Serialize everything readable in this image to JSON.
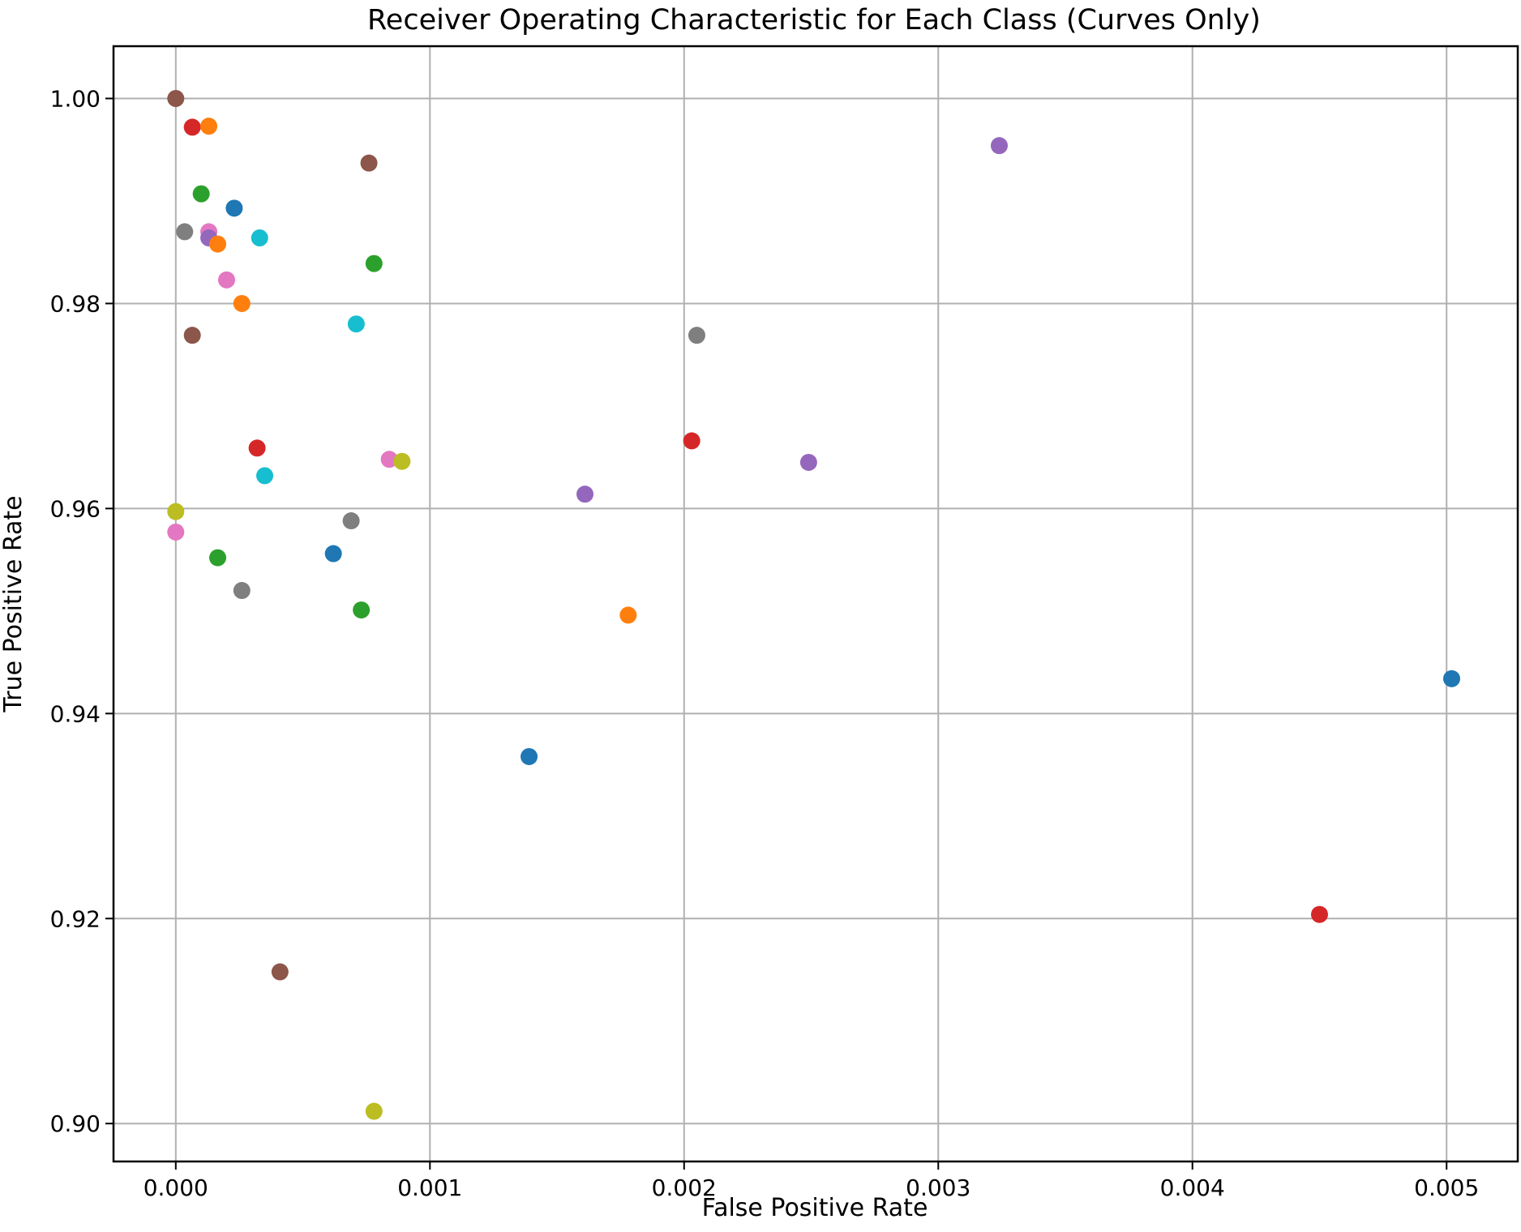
{
  "chart_data": {
    "type": "scatter",
    "title": "Receiver Operating Characteristic for Each Class (Curves Only)",
    "xlabel": "False Positive Rate",
    "ylabel": "True Positive Rate",
    "xlim": [
      -0.000245,
      0.00528
    ],
    "ylim": [
      0.8963,
      1.0051
    ],
    "xticks": [
      0.0,
      0.001,
      0.002,
      0.003,
      0.004,
      0.005
    ],
    "xtick_labels": [
      "0.000",
      "0.001",
      "0.002",
      "0.003",
      "0.004",
      "0.005"
    ],
    "yticks": [
      0.9,
      0.92,
      0.94,
      0.96,
      0.98,
      1.0
    ],
    "ytick_labels": [
      "0.90",
      "0.92",
      "0.94",
      "0.96",
      "0.98",
      "1.00"
    ],
    "grid": true,
    "points": [
      {
        "x": 0.0,
        "y": 1.0,
        "color": "#8c564b"
      },
      {
        "x": 6.5e-05,
        "y": 0.9972,
        "color": "#d62728"
      },
      {
        "x": 0.00013,
        "y": 0.9973,
        "color": "#ff7f0e"
      },
      {
        "x": 0.00076,
        "y": 0.9937,
        "color": "#8c564b"
      },
      {
        "x": 0.0001,
        "y": 0.9907,
        "color": "#2ca02c"
      },
      {
        "x": 0.00023,
        "y": 0.9893,
        "color": "#1f77b4"
      },
      {
        "x": 3.5e-05,
        "y": 0.987,
        "color": "#7f7f7f"
      },
      {
        "x": 0.00013,
        "y": 0.987,
        "color": "#e377c2"
      },
      {
        "x": 0.00013,
        "y": 0.9864,
        "color": "#9467bd"
      },
      {
        "x": 0.000165,
        "y": 0.9858,
        "color": "#ff7f0e"
      },
      {
        "x": 0.00033,
        "y": 0.9864,
        "color": "#17becf"
      },
      {
        "x": 0.00078,
        "y": 0.9839,
        "color": "#2ca02c"
      },
      {
        "x": 0.0002,
        "y": 0.9823,
        "color": "#e377c2"
      },
      {
        "x": 0.00026,
        "y": 0.98,
        "color": "#ff7f0e"
      },
      {
        "x": 0.00071,
        "y": 0.978,
        "color": "#17becf"
      },
      {
        "x": 6.5e-05,
        "y": 0.9769,
        "color": "#8c564b"
      },
      {
        "x": 0.00205,
        "y": 0.9769,
        "color": "#7f7f7f"
      },
      {
        "x": 0.00324,
        "y": 0.9954,
        "color": "#9467bd"
      },
      {
        "x": 0.00032,
        "y": 0.9659,
        "color": "#d62728"
      },
      {
        "x": 0.00203,
        "y": 0.9666,
        "color": "#d62728"
      },
      {
        "x": 0.00249,
        "y": 0.9645,
        "color": "#9467bd"
      },
      {
        "x": 0.00084,
        "y": 0.9648,
        "color": "#e377c2"
      },
      {
        "x": 0.00089,
        "y": 0.9646,
        "color": "#bcbd22"
      },
      {
        "x": 0.00035,
        "y": 0.9632,
        "color": "#17becf"
      },
      {
        "x": 0.00161,
        "y": 0.9614,
        "color": "#9467bd"
      },
      {
        "x": 0.0,
        "y": 0.9597,
        "color": "#bcbd22"
      },
      {
        "x": 0.00069,
        "y": 0.9588,
        "color": "#7f7f7f"
      },
      {
        "x": 0.0,
        "y": 0.9577,
        "color": "#e377c2"
      },
      {
        "x": 0.00062,
        "y": 0.9556,
        "color": "#1f77b4"
      },
      {
        "x": 0.000165,
        "y": 0.9552,
        "color": "#2ca02c"
      },
      {
        "x": 0.00026,
        "y": 0.952,
        "color": "#7f7f7f"
      },
      {
        "x": 0.00073,
        "y": 0.9501,
        "color": "#2ca02c"
      },
      {
        "x": 0.00178,
        "y": 0.9496,
        "color": "#ff7f0e"
      },
      {
        "x": 0.00502,
        "y": 0.9434,
        "color": "#1f77b4"
      },
      {
        "x": 0.00139,
        "y": 0.9358,
        "color": "#1f77b4"
      },
      {
        "x": 0.0045,
        "y": 0.9204,
        "color": "#d62728"
      },
      {
        "x": 0.00041,
        "y": 0.9148,
        "color": "#8c564b"
      },
      {
        "x": 0.00078,
        "y": 0.9012,
        "color": "#bcbd22"
      }
    ]
  }
}
